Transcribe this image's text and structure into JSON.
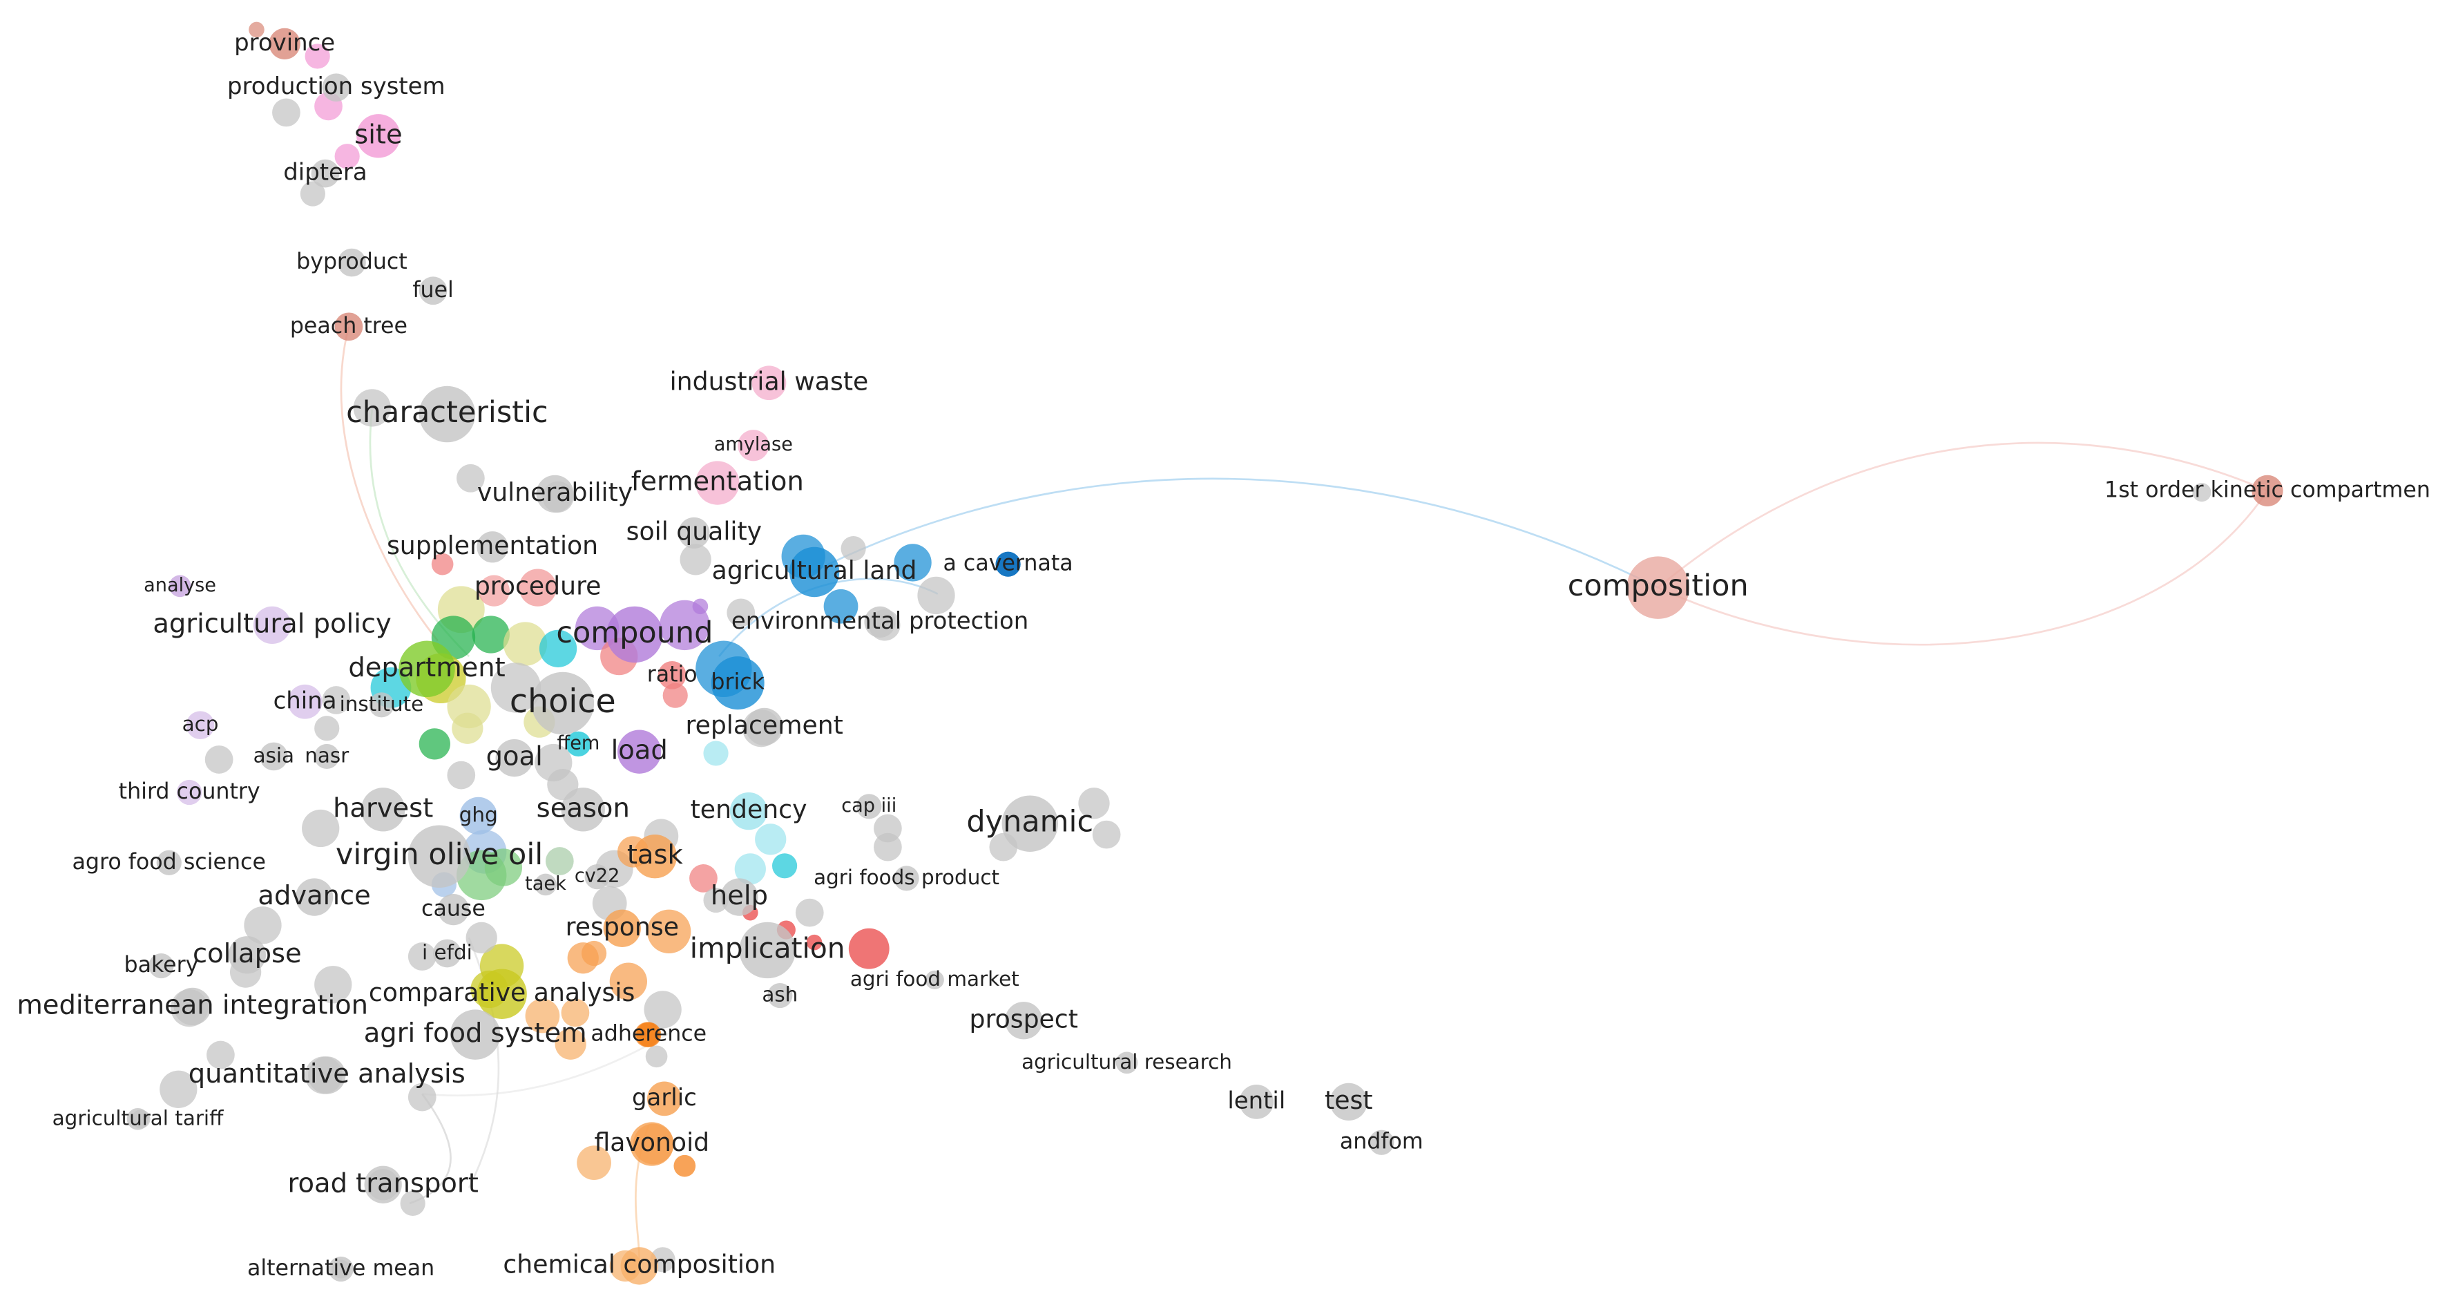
{
  "nodes": [
    {
      "label": "province"
    },
    {
      "label": "production system"
    },
    {
      "label": "site"
    },
    {
      "label": "diptera"
    },
    {
      "label": "byproduct"
    },
    {
      "label": "fuel"
    },
    {
      "label": "peach tree"
    },
    {
      "label": "characteristic"
    },
    {
      "label": "industrial waste"
    },
    {
      "label": "amylase"
    },
    {
      "label": "fermentation"
    },
    {
      "label": "vulnerability"
    },
    {
      "label": "soil quality"
    },
    {
      "label": "supplementation"
    },
    {
      "label": "agricultural land"
    },
    {
      "label": "a cavernata"
    },
    {
      "label": "procedure"
    },
    {
      "label": "composition"
    },
    {
      "label": "1st order kinetic compartmen"
    },
    {
      "label": "analyse"
    },
    {
      "label": "agricultural policy"
    },
    {
      "label": "compound"
    },
    {
      "label": "environmental protection"
    },
    {
      "label": "ratio"
    },
    {
      "label": "brick"
    },
    {
      "label": "department"
    },
    {
      "label": "china"
    },
    {
      "label": "institute"
    },
    {
      "label": "choice"
    },
    {
      "label": "replacement"
    },
    {
      "label": "ffem"
    },
    {
      "label": "load"
    },
    {
      "label": "acp"
    },
    {
      "label": "goal"
    },
    {
      "label": "asia"
    },
    {
      "label": "nasr"
    },
    {
      "label": "third country"
    },
    {
      "label": "harvest"
    },
    {
      "label": "ghg"
    },
    {
      "label": "season"
    },
    {
      "label": "tendency"
    },
    {
      "label": "cap iii"
    },
    {
      "label": "dynamic"
    },
    {
      "label": "agro food science"
    },
    {
      "label": "virgin olive oil"
    },
    {
      "label": "task"
    },
    {
      "label": "taek"
    },
    {
      "label": "cv22"
    },
    {
      "label": "agri foods product"
    },
    {
      "label": "advance"
    },
    {
      "label": "cause"
    },
    {
      "label": "help"
    },
    {
      "label": "response"
    },
    {
      "label": "implication"
    },
    {
      "label": "agri food market"
    },
    {
      "label": "bakery"
    },
    {
      "label": "collapse"
    },
    {
      "label": "i efdi"
    },
    {
      "label": "comparative analysis"
    },
    {
      "label": "mediterranean integration"
    },
    {
      "label": "prospect"
    },
    {
      "label": "ash"
    },
    {
      "label": "agri food system"
    },
    {
      "label": "adherence"
    },
    {
      "label": "quantitative analysis"
    },
    {
      "label": "agricultural research"
    },
    {
      "label": "agricultural tariff"
    },
    {
      "label": "garlic"
    },
    {
      "label": "lentil"
    },
    {
      "label": "test"
    },
    {
      "label": "andfom"
    },
    {
      "label": "flavonoid"
    },
    {
      "label": "road transport"
    },
    {
      "label": "alternative mean"
    },
    {
      "label": "chemical composition"
    }
  ]
}
